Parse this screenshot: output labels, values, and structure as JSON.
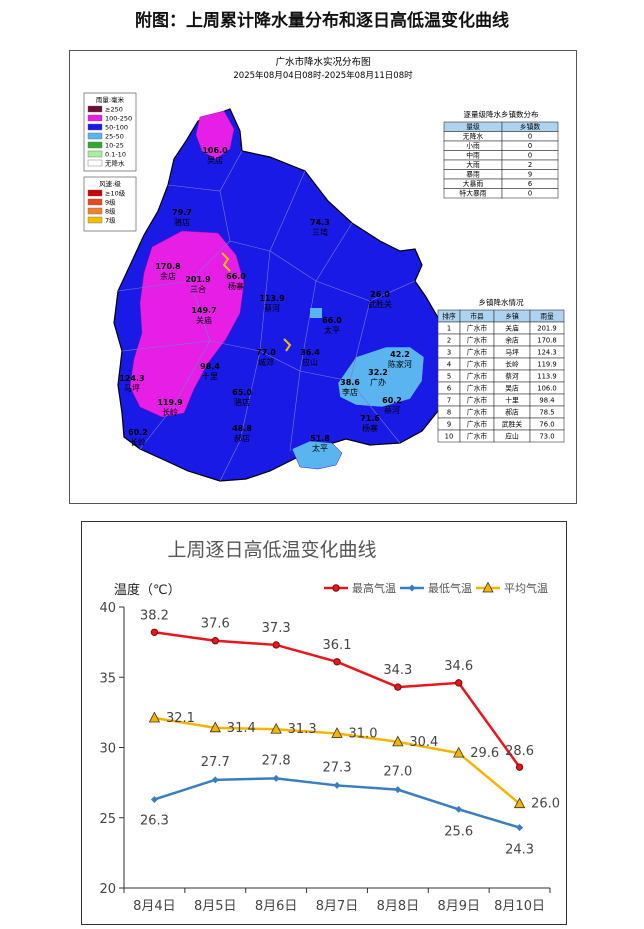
{
  "page_title": "附图：上周累计降水量分布和逐日高低温变化曲线",
  "map": {
    "title": "广水市降水实况分布图",
    "subtitle": "2025年08月04日08时-2025年08月11日08时",
    "rain_legend": {
      "title": "雨量:毫米",
      "items": [
        {
          "label": "≥250",
          "color": "#6b0f3a"
        },
        {
          "label": "100-250",
          "color": "#e61ee6"
        },
        {
          "label": "50-100",
          "color": "#1a1ae6"
        },
        {
          "label": "25-50",
          "color": "#5ab4f0"
        },
        {
          "label": "10-25",
          "color": "#2ea82e"
        },
        {
          "label": "0.1-10",
          "color": "#a6f0a0"
        },
        {
          "label": "无降水",
          "color": "#ffffff"
        }
      ]
    },
    "wind_legend": {
      "title": "风速:级",
      "items": [
        {
          "label": "≥10级",
          "color": "#cc0000"
        },
        {
          "label": "9级",
          "color": "#e64a1a"
        },
        {
          "label": "8级",
          "color": "#f08030"
        },
        {
          "label": "7级",
          "color": "#f0c000"
        }
      ]
    },
    "grade_table": {
      "title": "逐量级降水乡镇数分布",
      "headers": [
        "量级",
        "乡镇数"
      ],
      "rows": [
        [
          "无降水",
          "0"
        ],
        [
          "小雨",
          "0"
        ],
        [
          "中雨",
          "0"
        ],
        [
          "大雨",
          "2"
        ],
        [
          "暴雨",
          "9"
        ],
        [
          "大暴雨",
          "6"
        ],
        [
          "特大暴雨",
          "0"
        ]
      ]
    },
    "town_table": {
      "title": "乡镇降水情况",
      "headers": [
        "排序",
        "市县",
        "乡镇",
        "雨量"
      ],
      "rows": [
        [
          "1",
          "广水市",
          "关庙",
          "201.9"
        ],
        [
          "2",
          "广水市",
          "余店",
          "170.8"
        ],
        [
          "3",
          "广水市",
          "马坪",
          "124.3"
        ],
        [
          "4",
          "广水市",
          "长岭",
          "119.9"
        ],
        [
          "5",
          "广水市",
          "蔡河",
          "113.9"
        ],
        [
          "6",
          "广水市",
          "吴店",
          "106.0"
        ],
        [
          "7",
          "广水市",
          "十里",
          "98.4"
        ],
        [
          "8",
          "广水市",
          "郝店",
          "78.5"
        ],
        [
          "9",
          "广水市",
          "武胜关",
          "76.0"
        ],
        [
          "10",
          "广水市",
          "应山",
          "73.0"
        ]
      ]
    },
    "labels": [
      {
        "value": "106.0",
        "name": "吴店"
      },
      {
        "value": "79.7",
        "name": "骆店"
      },
      {
        "value": "170.8",
        "name": "余店"
      },
      {
        "value": "201.9",
        "name": "三合"
      },
      {
        "value": "66.0",
        "name": "杨寨"
      },
      {
        "value": "149.7",
        "name": "关庙"
      },
      {
        "value": "113.9",
        "name": "蔡河"
      },
      {
        "value": "74.3",
        "name": "三塆"
      },
      {
        "value": "26.0",
        "name": "武胜关"
      },
      {
        "value": "66.0",
        "name": "太平"
      },
      {
        "value": "42.2",
        "name": "陈家河"
      },
      {
        "value": "32.2",
        "name": "广办"
      },
      {
        "value": "38.6",
        "name": "李店"
      },
      {
        "value": "124.3",
        "name": "马坪"
      },
      {
        "value": "119.9",
        "name": "长岭"
      },
      {
        "value": "77.0",
        "name": "城郊"
      },
      {
        "value": "60.2",
        "name": "长岭"
      },
      {
        "value": "48.8",
        "name": "郝店"
      },
      {
        "value": "71.6",
        "name": "杨寨"
      },
      {
        "value": "98.4",
        "name": "十里"
      },
      {
        "value": "65.0",
        "name": "骆店"
      },
      {
        "value": "60.2",
        "name": "蔡河"
      },
      {
        "value": "51.8",
        "name": "太平"
      },
      {
        "value": "36.4",
        "name": "应山"
      }
    ]
  },
  "chart_data": {
    "type": "line",
    "title": "上周逐日高低温变化曲线",
    "ylabel": "温度（℃）",
    "ylim": [
      20,
      40
    ],
    "yticks": [
      20,
      25,
      30,
      35,
      40
    ],
    "categories": [
      "8月4日",
      "8月5日",
      "8月6日",
      "8月7日",
      "8月8日",
      "8月9日",
      "8月10日"
    ],
    "legend_position": "top-right",
    "series": [
      {
        "name": "最高气温",
        "color": "#e8151b",
        "marker": "circle",
        "values": [
          38.2,
          37.6,
          37.3,
          36.1,
          34.3,
          34.6,
          28.6
        ]
      },
      {
        "name": "最低气温",
        "color": "#3a7ec2",
        "marker": "diamond",
        "values": [
          26.3,
          27.7,
          27.8,
          27.3,
          27.0,
          25.6,
          24.3
        ]
      },
      {
        "name": "平均气温",
        "color": "#f4b400",
        "marker": "triangle",
        "values": [
          32.1,
          31.4,
          31.3,
          31.0,
          30.4,
          29.6,
          26.0
        ]
      }
    ]
  }
}
